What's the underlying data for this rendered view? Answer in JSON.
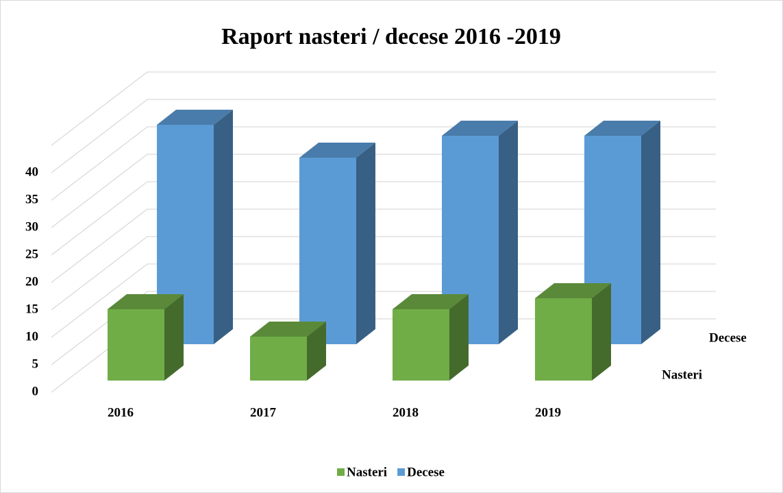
{
  "chart_data": {
    "type": "bar3d",
    "title": "Raport nasteri / decese 2016 -2019",
    "categories": [
      "2016",
      "2017",
      "2018",
      "2019"
    ],
    "series": [
      {
        "name": "Nasteri",
        "color": "#70ad47",
        "values": [
          13,
          8,
          13,
          15
        ]
      },
      {
        "name": "Decese",
        "color": "#5b9bd5",
        "values": [
          40,
          34,
          38,
          38
        ]
      }
    ],
    "ylim": [
      0,
      45
    ],
    "yticks": [
      0,
      5,
      10,
      15,
      20,
      25,
      30,
      35,
      40
    ],
    "grid": true,
    "legend": "bottom"
  }
}
